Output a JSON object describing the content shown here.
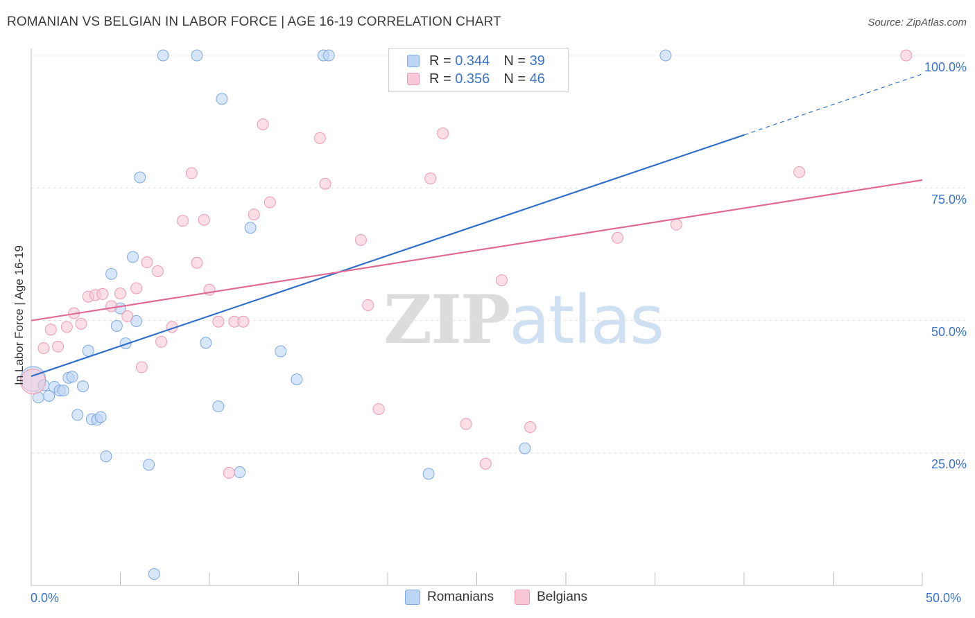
{
  "header": {
    "title": "ROMANIAN VS BELGIAN IN LABOR FORCE | AGE 16-19 CORRELATION CHART",
    "source": "Source: ZipAtlas.com"
  },
  "watermark": {
    "zip": "ZIP",
    "atlas": "atlas"
  },
  "legend": {
    "romanians": {
      "r_label": "R =",
      "r_value": "0.344",
      "n_label": "N =",
      "n_value": "39"
    },
    "belgians": {
      "r_label": "R =",
      "r_value": "0.356",
      "n_label": "N =",
      "n_value": "46"
    }
  },
  "bottom_legend": {
    "romanians": "Romanians",
    "belgians": "Belgians"
  },
  "colors": {
    "romanians_fill": "#bcd5f5",
    "romanians_stroke": "#7ea8e0",
    "romanians_line": "#2f6fcb",
    "belgians_fill": "#f9c8d6",
    "belgians_stroke": "#ec9ab2",
    "belgians_line": "#e06a93",
    "tick_text": "#3a73c9",
    "grid": "#e0e0e0"
  },
  "chart_data": {
    "type": "scatter",
    "title": "ROMANIAN VS BELGIAN IN LABOR FORCE | AGE 16-19 CORRELATION CHART",
    "xlabel": "",
    "ylabel": "In Labor Force | Age 16-19",
    "xlim": [
      0,
      50
    ],
    "ylim": [
      0,
      105
    ],
    "x_tick_labels": [
      "0.0%",
      "50.0%"
    ],
    "y_ticks": [
      25,
      50,
      75,
      100
    ],
    "y_tick_labels": [
      "25.0%",
      "50.0%",
      "75.0%",
      "100.0%"
    ],
    "grid": true,
    "legend_position": "top-center",
    "series": [
      {
        "name": "Romanians",
        "r": 0.344,
        "n": 39,
        "trend": {
          "x": [
            0,
            40
          ],
          "y": [
            39.5,
            85
          ],
          "dashed_extension": {
            "x": [
              40,
              50
            ],
            "y": [
              85,
              96.5
            ]
          }
        },
        "points": [
          {
            "x": 0.1,
            "y": 39,
            "big": true
          },
          {
            "x": 0.4,
            "y": 35.5
          },
          {
            "x": 0.7,
            "y": 37.8
          },
          {
            "x": 1.0,
            "y": 35.8
          },
          {
            "x": 1.3,
            "y": 37.5
          },
          {
            "x": 1.6,
            "y": 36.8
          },
          {
            "x": 1.8,
            "y": 36.8
          },
          {
            "x": 2.1,
            "y": 39.2
          },
          {
            "x": 2.3,
            "y": 39.4
          },
          {
            "x": 2.6,
            "y": 32.2
          },
          {
            "x": 2.9,
            "y": 37.6
          },
          {
            "x": 3.2,
            "y": 44.3
          },
          {
            "x": 3.4,
            "y": 31.4
          },
          {
            "x": 3.7,
            "y": 31.3
          },
          {
            "x": 3.9,
            "y": 31.8
          },
          {
            "x": 4.2,
            "y": 24.4
          },
          {
            "x": 4.5,
            "y": 58.8
          },
          {
            "x": 4.8,
            "y": 49.0
          },
          {
            "x": 5.0,
            "y": 52.3
          },
          {
            "x": 5.3,
            "y": 45.7
          },
          {
            "x": 5.7,
            "y": 62.0
          },
          {
            "x": 5.9,
            "y": 49.9
          },
          {
            "x": 6.1,
            "y": 77.0
          },
          {
            "x": 6.6,
            "y": 22.8
          },
          {
            "x": 6.9,
            "y": 2.2
          },
          {
            "x": 7.4,
            "y": 100
          },
          {
            "x": 9.3,
            "y": 100
          },
          {
            "x": 9.8,
            "y": 45.8
          },
          {
            "x": 10.5,
            "y": 33.8
          },
          {
            "x": 10.7,
            "y": 91.8
          },
          {
            "x": 11.7,
            "y": 21.4
          },
          {
            "x": 12.3,
            "y": 67.5
          },
          {
            "x": 14.0,
            "y": 44.2
          },
          {
            "x": 14.9,
            "y": 38.9
          },
          {
            "x": 16.4,
            "y": 100
          },
          {
            "x": 16.7,
            "y": 100
          },
          {
            "x": 22.3,
            "y": 21.1
          },
          {
            "x": 27.7,
            "y": 25.9
          },
          {
            "x": 35.6,
            "y": 100
          }
        ]
      },
      {
        "name": "Belgians",
        "r": 0.356,
        "n": 46,
        "trend": {
          "x": [
            0,
            50
          ],
          "y": [
            50,
            76.5
          ]
        },
        "points": [
          {
            "x": 0.1,
            "y": 38.5,
            "big": true
          },
          {
            "x": 0.7,
            "y": 44.8
          },
          {
            "x": 1.1,
            "y": 48.3
          },
          {
            "x": 1.5,
            "y": 45.1
          },
          {
            "x": 2.0,
            "y": 48.8
          },
          {
            "x": 2.4,
            "y": 51.4
          },
          {
            "x": 2.8,
            "y": 49.4
          },
          {
            "x": 3.2,
            "y": 54.5
          },
          {
            "x": 3.6,
            "y": 54.8
          },
          {
            "x": 4.0,
            "y": 55.0
          },
          {
            "x": 4.5,
            "y": 52.7
          },
          {
            "x": 5.0,
            "y": 55.1
          },
          {
            "x": 5.4,
            "y": 50.8
          },
          {
            "x": 5.9,
            "y": 56.1
          },
          {
            "x": 6.2,
            "y": 41.2
          },
          {
            "x": 6.5,
            "y": 61.0
          },
          {
            "x": 7.1,
            "y": 59.3
          },
          {
            "x": 7.3,
            "y": 46.0
          },
          {
            "x": 7.9,
            "y": 48.8
          },
          {
            "x": 8.5,
            "y": 68.8
          },
          {
            "x": 9.0,
            "y": 77.8
          },
          {
            "x": 9.3,
            "y": 60.9
          },
          {
            "x": 9.7,
            "y": 69.0
          },
          {
            "x": 10.0,
            "y": 55.8
          },
          {
            "x": 10.5,
            "y": 49.8
          },
          {
            "x": 11.1,
            "y": 21.3
          },
          {
            "x": 11.4,
            "y": 49.8
          },
          {
            "x": 11.9,
            "y": 49.8
          },
          {
            "x": 12.5,
            "y": 70.0
          },
          {
            "x": 13.0,
            "y": 87.0
          },
          {
            "x": 13.4,
            "y": 72.3
          },
          {
            "x": 16.2,
            "y": 84.4
          },
          {
            "x": 16.5,
            "y": 75.8
          },
          {
            "x": 18.5,
            "y": 65.2
          },
          {
            "x": 18.9,
            "y": 52.9
          },
          {
            "x": 19.5,
            "y": 33.3
          },
          {
            "x": 22.4,
            "y": 76.8
          },
          {
            "x": 23.1,
            "y": 85.3
          },
          {
            "x": 24.4,
            "y": 30.5
          },
          {
            "x": 25.5,
            "y": 23.0
          },
          {
            "x": 26.4,
            "y": 57.6
          },
          {
            "x": 28.0,
            "y": 29.9
          },
          {
            "x": 32.9,
            "y": 65.6
          },
          {
            "x": 36.2,
            "y": 68.1
          },
          {
            "x": 43.1,
            "y": 78.0
          },
          {
            "x": 49.1,
            "y": 100
          }
        ]
      }
    ]
  }
}
